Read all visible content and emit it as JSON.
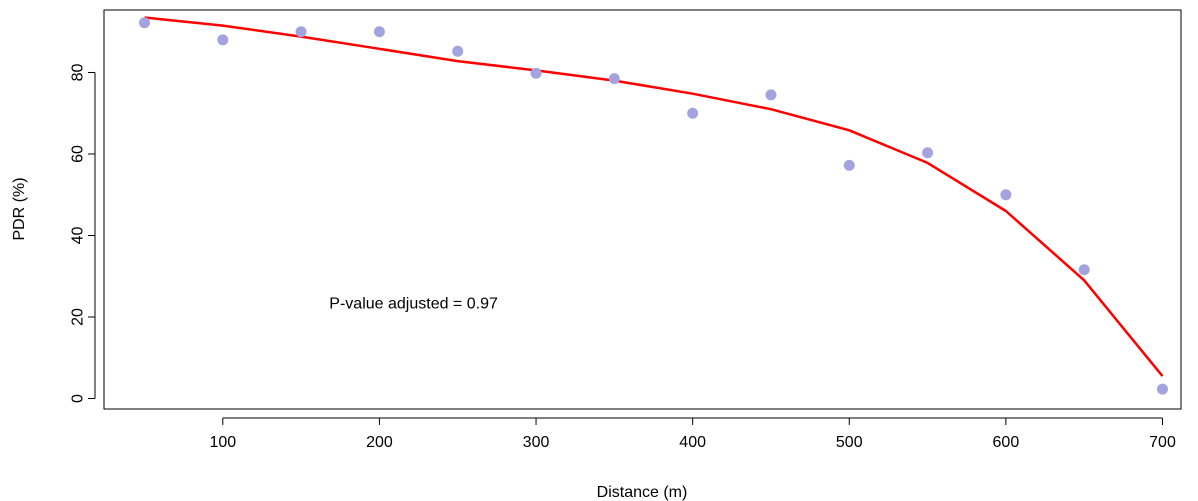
{
  "chart_data": {
    "type": "scatter",
    "title": "",
    "xlabel": "Distance (m)",
    "ylabel": "PDR (%)",
    "xlim": [
      50,
      700
    ],
    "ylim": [
      0,
      93
    ],
    "x_ticks": [
      100,
      200,
      300,
      400,
      500,
      600,
      700
    ],
    "y_ticks": [
      0,
      20,
      40,
      60,
      80
    ],
    "grid": false,
    "legend": "none",
    "series": [
      {
        "type": "scatter",
        "color": "#a3a3e0",
        "points": [
          {
            "x": 50,
            "y": 92.2
          },
          {
            "x": 100,
            "y": 88.0
          },
          {
            "x": 150,
            "y": 90.0
          },
          {
            "x": 200,
            "y": 90.0
          },
          {
            "x": 250,
            "y": 85.2
          },
          {
            "x": 300,
            "y": 79.8
          },
          {
            "x": 350,
            "y": 78.5
          },
          {
            "x": 400,
            "y": 70.0
          },
          {
            "x": 450,
            "y": 74.5
          },
          {
            "x": 500,
            "y": 57.2
          },
          {
            "x": 550,
            "y": 60.3
          },
          {
            "x": 600,
            "y": 50.0
          },
          {
            "x": 650,
            "y": 31.6
          },
          {
            "x": 700,
            "y": 2.3
          }
        ]
      },
      {
        "type": "line",
        "color": "#ff0000",
        "points": [
          {
            "x": 50,
            "y": 93.5
          },
          {
            "x": 100,
            "y": 91.5
          },
          {
            "x": 150,
            "y": 88.8
          },
          {
            "x": 200,
            "y": 85.8
          },
          {
            "x": 250,
            "y": 82.8
          },
          {
            "x": 300,
            "y": 80.5
          },
          {
            "x": 350,
            "y": 78.0
          },
          {
            "x": 400,
            "y": 74.8
          },
          {
            "x": 450,
            "y": 71.0
          },
          {
            "x": 500,
            "y": 65.8
          },
          {
            "x": 550,
            "y": 57.8
          },
          {
            "x": 600,
            "y": 46.0
          },
          {
            "x": 650,
            "y": 29.0
          },
          {
            "x": 700,
            "y": 5.5
          }
        ]
      }
    ],
    "annotations": [
      {
        "text": "P-value adjusted =  0.97",
        "x": 168,
        "y": 23.5
      }
    ]
  }
}
